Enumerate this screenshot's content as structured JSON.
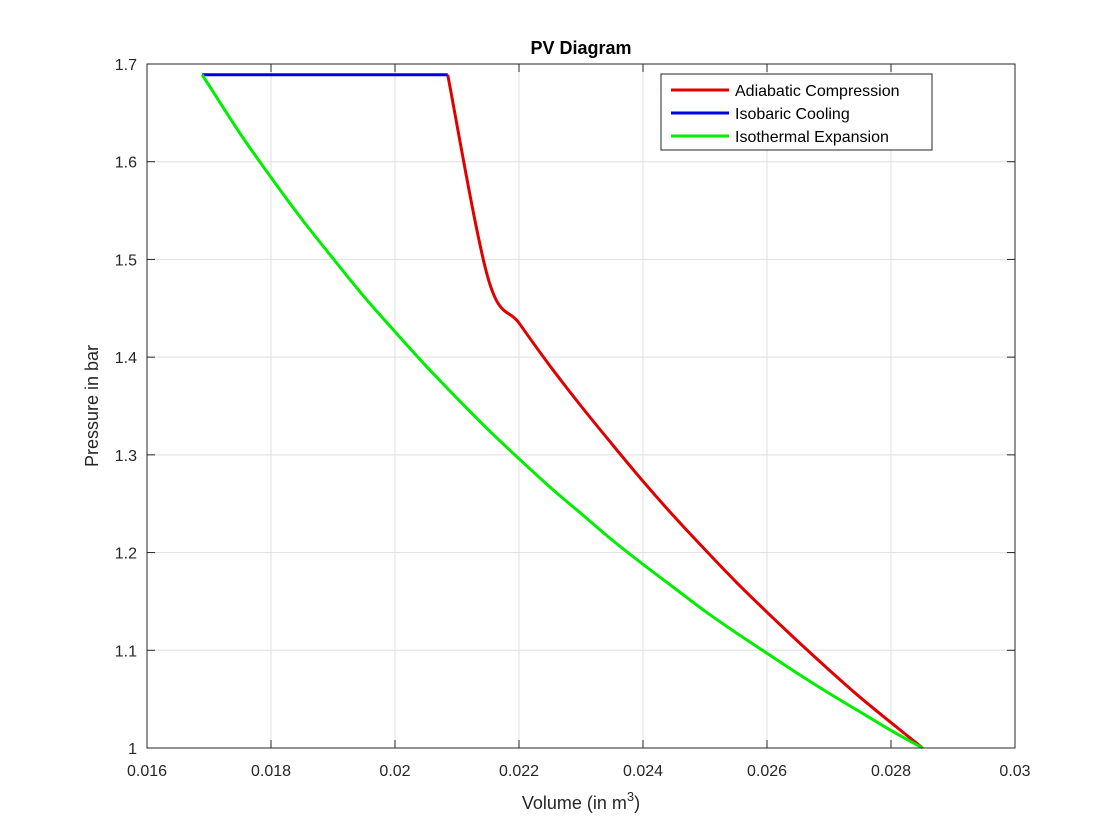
{
  "chart_data": {
    "type": "line",
    "title": "PV Diagram",
    "xlabel_prefix": "Volume (in m",
    "xlabel_sup": "3",
    "xlabel_suffix": ")",
    "ylabel": "Pressure in bar",
    "xlim": [
      0.016,
      0.03
    ],
    "ylim": [
      1,
      1.7
    ],
    "xticks": [
      0.016,
      0.018,
      0.02,
      0.022,
      0.024,
      0.026,
      0.028,
      0.03
    ],
    "xtick_labels": [
      "0.016",
      "0.018",
      "0.02",
      "0.022",
      "0.024",
      "0.026",
      "0.028",
      "0.03"
    ],
    "yticks": [
      1,
      1.1,
      1.2,
      1.3,
      1.4,
      1.5,
      1.6,
      1.7
    ],
    "ytick_labels": [
      "1",
      "1.1",
      "1.2",
      "1.3",
      "1.4",
      "1.5",
      "1.6",
      "1.7"
    ],
    "grid": true,
    "legend_position": "top-right",
    "series": [
      {
        "name": "Adiabatic Compression",
        "color": "#e00000",
        "x": [
          0.02851,
          0.028,
          0.0275,
          0.027,
          0.0265,
          0.026,
          0.0255,
          0.025,
          0.0245,
          0.024,
          0.0235,
          0.023,
          0.0225,
          0.022,
          0.0215,
          0.02085
        ],
        "y": [
          1.0,
          1.026,
          1.052,
          1.08,
          1.109,
          1.139,
          1.17,
          1.203,
          1.237,
          1.273,
          1.311,
          1.35,
          1.391,
          1.435,
          1.481,
          1.689
        ]
      },
      {
        "name": "Isobaric Cooling",
        "color": "#0000e0",
        "x": [
          0.02085,
          0.01689
        ],
        "y": [
          1.689,
          1.689
        ]
      },
      {
        "name": "Isothermal Expansion",
        "color": "#00ee00",
        "x": [
          0.01689,
          0.0175,
          0.018,
          0.0185,
          0.019,
          0.0195,
          0.02,
          0.0205,
          0.021,
          0.0215,
          0.022,
          0.0225,
          0.023,
          0.0235,
          0.024,
          0.0245,
          0.025,
          0.0255,
          0.026,
          0.0265,
          0.027,
          0.0275,
          0.028,
          0.02851
        ],
        "y": [
          1.689,
          1.629,
          1.584,
          1.541,
          1.501,
          1.462,
          1.426,
          1.391,
          1.358,
          1.326,
          1.296,
          1.267,
          1.24,
          1.213,
          1.188,
          1.164,
          1.14,
          1.118,
          1.097,
          1.076,
          1.056,
          1.037,
          1.018,
          1.0
        ]
      }
    ]
  }
}
